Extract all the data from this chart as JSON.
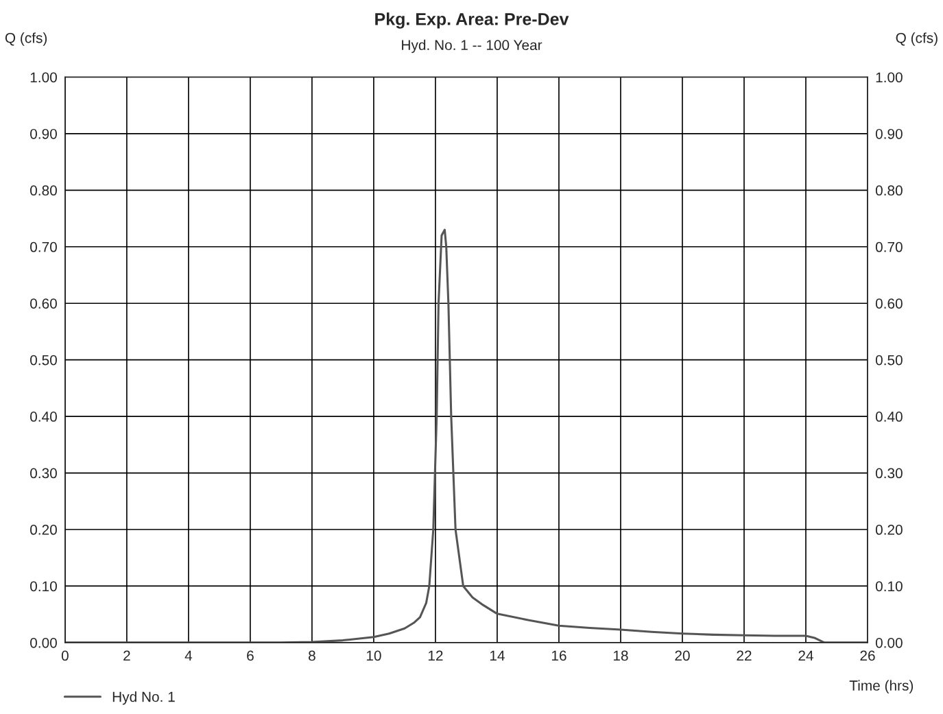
{
  "chart_data": {
    "type": "line",
    "title": "Pkg. Exp. Area: Pre-Dev",
    "subtitle": "Hyd. No. 1 -- 100 Year",
    "xlabel": "Time (hrs)",
    "ylabel": "Q (cfs)",
    "y2label": "Q (cfs)",
    "x": [
      0,
      2,
      4,
      6,
      7,
      8,
      9,
      10,
      10.5,
      11,
      11.3,
      11.5,
      11.7,
      11.8,
      11.93,
      12.04,
      12.1,
      12.2,
      12.3,
      12.35,
      12.42,
      12.51,
      12.65,
      12.9,
      13.2,
      13.5,
      14,
      15,
      16,
      17,
      18,
      19,
      20,
      21,
      22,
      23,
      24,
      24.3,
      24.6,
      26
    ],
    "series": [
      {
        "name": "Hyd No. 1",
        "color": "#555555",
        "values": [
          0,
          0,
          0,
          0,
          0,
          0.001,
          0.004,
          0.01,
          0.016,
          0.025,
          0.035,
          0.045,
          0.07,
          0.1,
          0.2,
          0.4,
          0.6,
          0.72,
          0.73,
          0.7,
          0.6,
          0.4,
          0.2,
          0.1,
          0.08,
          0.068,
          0.051,
          0.04,
          0.03,
          0.026,
          0.023,
          0.019,
          0.016,
          0.014,
          0.013,
          0.012,
          0.012,
          0.008,
          0,
          0
        ]
      }
    ],
    "xlim": [
      0,
      26
    ],
    "xticks": [
      0,
      2,
      4,
      6,
      8,
      10,
      12,
      14,
      16,
      18,
      20,
      22,
      24,
      26
    ],
    "ylim": [
      0,
      1.0
    ],
    "yticks": [
      {
        "value": 0,
        "label": "0.00"
      },
      {
        "value": 0.1,
        "label": "0.10"
      },
      {
        "value": 0.2,
        "label": "0.20"
      },
      {
        "value": 0.3,
        "label": "0.30"
      },
      {
        "value": 0.4,
        "label": "0.40"
      },
      {
        "value": 0.5,
        "label": "0.50"
      },
      {
        "value": 0.6,
        "label": "0.60"
      },
      {
        "value": 0.7,
        "label": "0.70"
      },
      {
        "value": 0.8,
        "label": "0.80"
      },
      {
        "value": 0.9,
        "label": "0.90"
      },
      {
        "value": 1.0,
        "label": "1.00"
      }
    ],
    "y2lim": [
      0,
      1.0
    ],
    "y2ticks": [
      {
        "value": 0,
        "label": "0.00"
      },
      {
        "value": 0.1,
        "label": "0.10"
      },
      {
        "value": 0.2,
        "label": "0.20"
      },
      {
        "value": 0.3,
        "label": "0.30"
      },
      {
        "value": 0.4,
        "label": "0.40"
      },
      {
        "value": 0.5,
        "label": "0.50"
      },
      {
        "value": 0.6,
        "label": "0.60"
      },
      {
        "value": 0.7,
        "label": "0.70"
      },
      {
        "value": 0.8,
        "label": "0.80"
      },
      {
        "value": 0.9,
        "label": "0.90"
      },
      {
        "value": 1.0,
        "label": "1.00"
      }
    ],
    "grid": true,
    "legend": "bottom left",
    "marker": "none",
    "line_style": "solid"
  }
}
